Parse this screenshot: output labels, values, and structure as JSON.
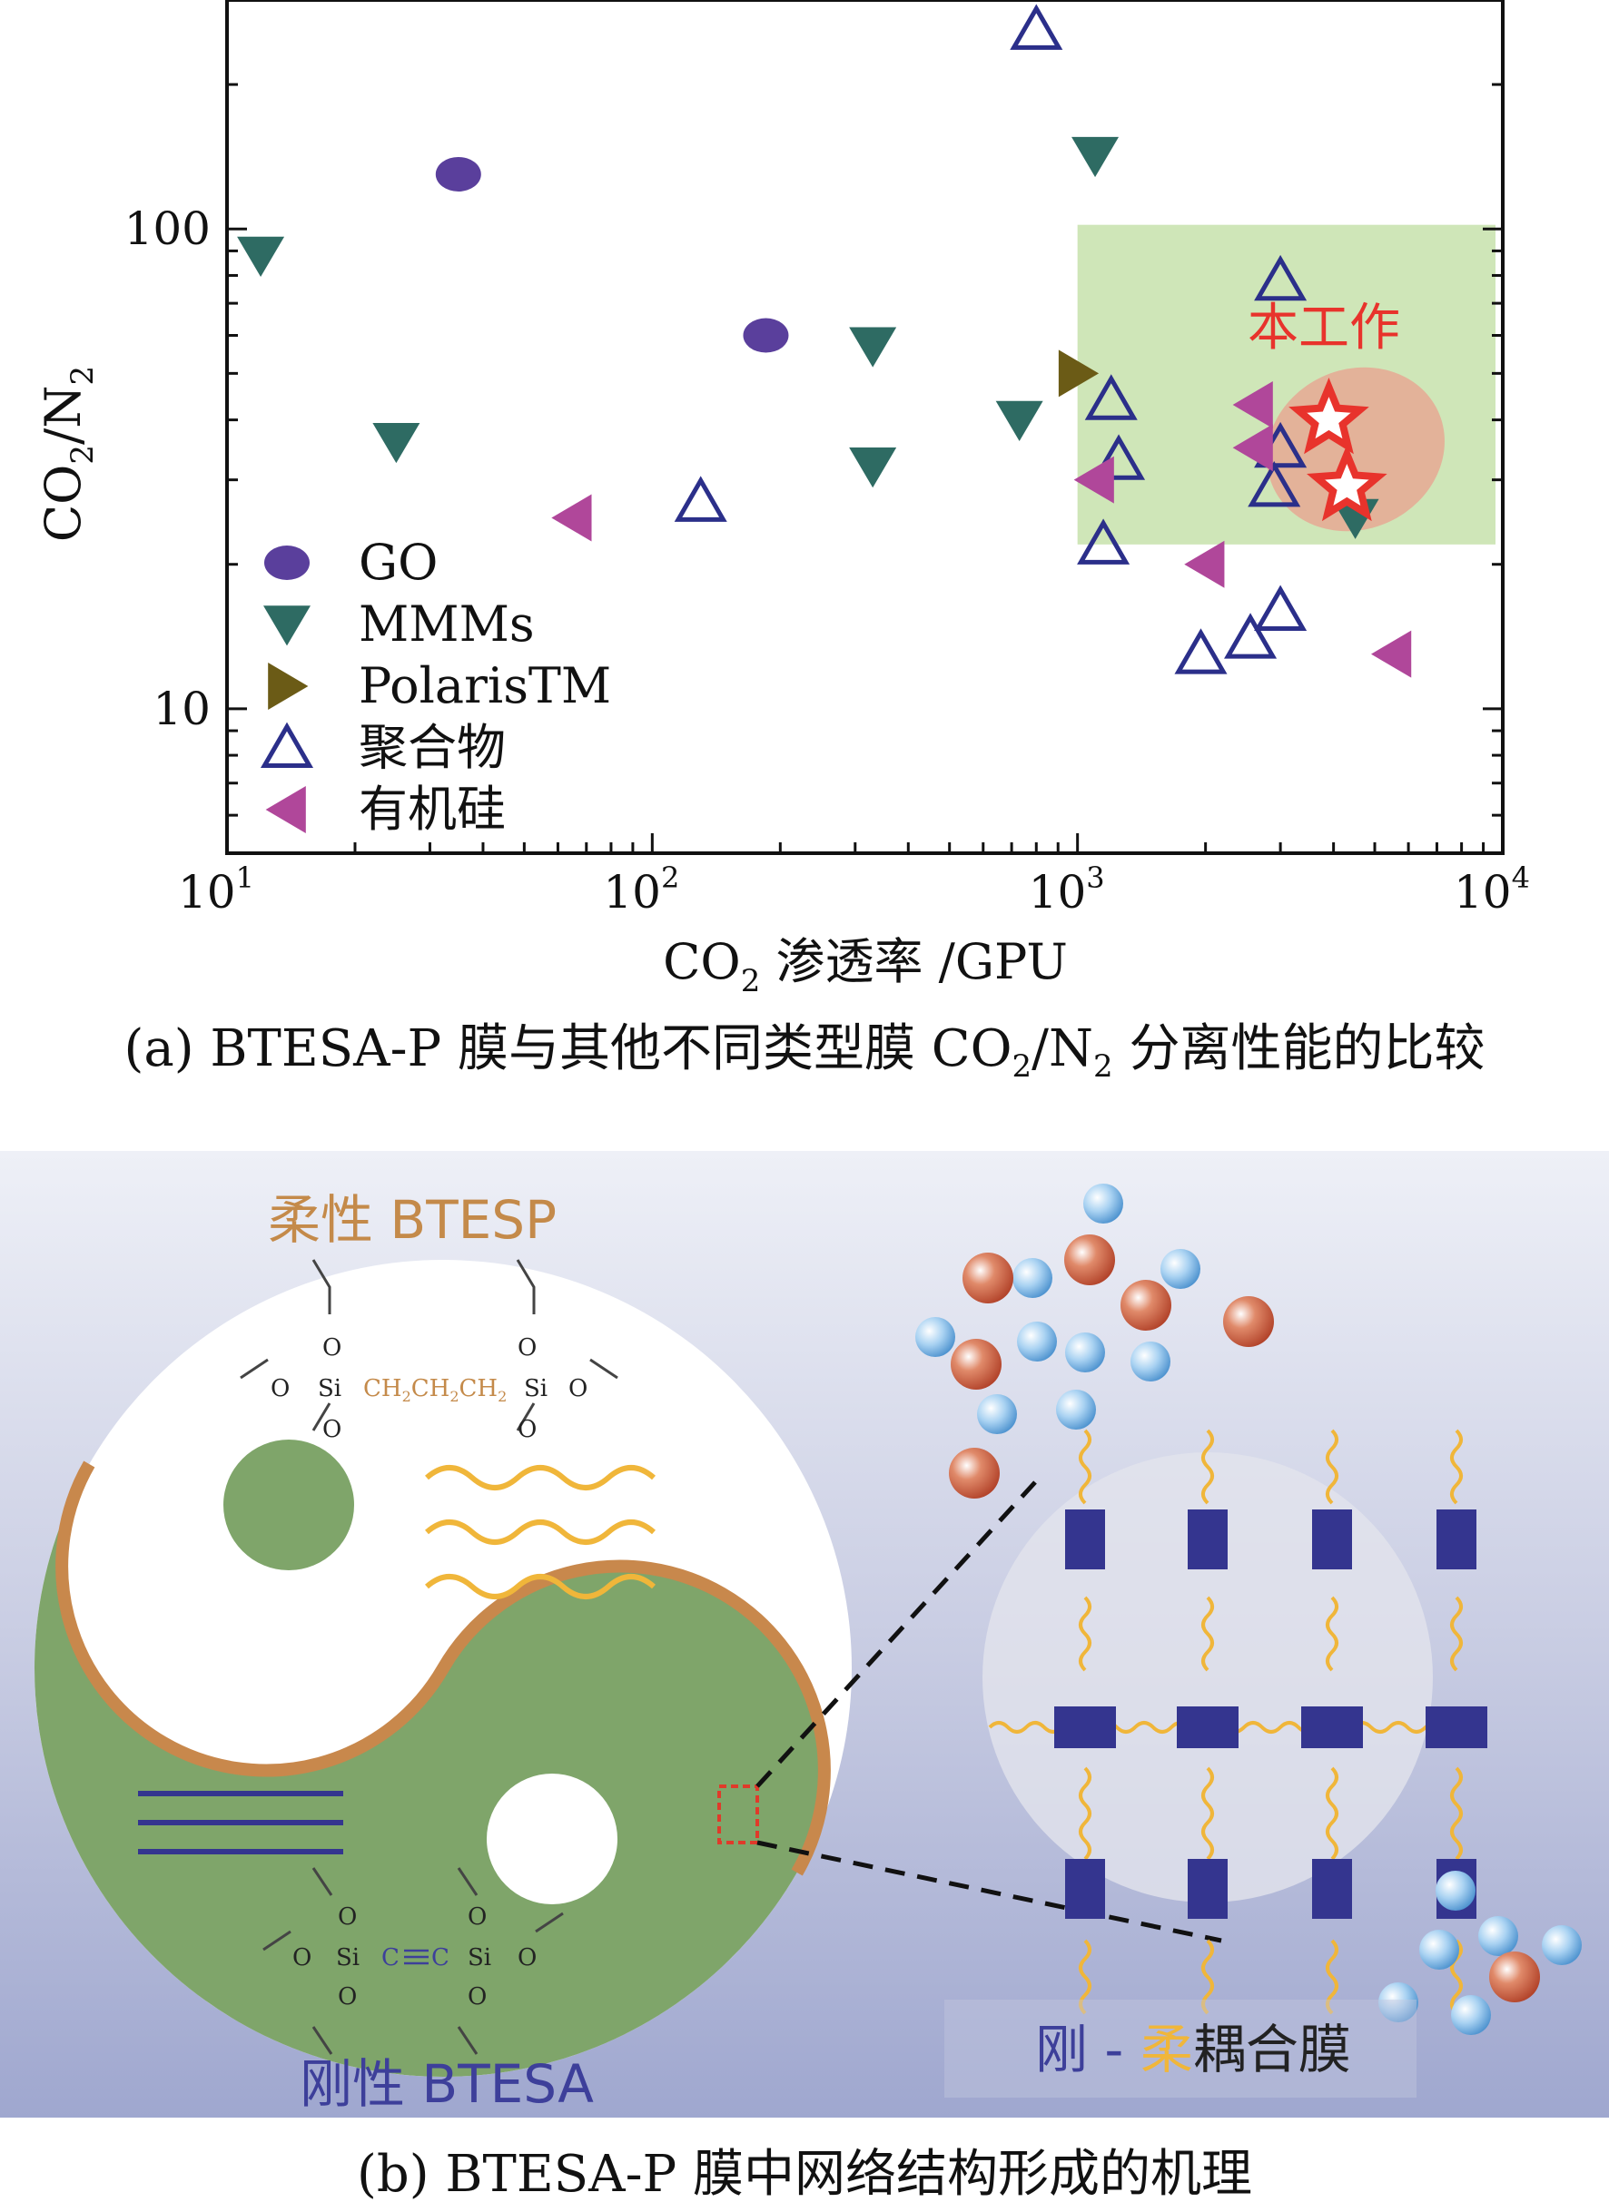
{
  "chart_data": {
    "type": "scatter",
    "x_scale": "log",
    "y_scale": "log",
    "xlim": [
      10,
      10000
    ],
    "ylim": [
      5,
      300
    ],
    "xlabel_main": "CO",
    "xlabel_sub": "2",
    "xlabel_rest": " 渗透率 /GPU",
    "ylabel_main": "CO",
    "ylabel_sub": "2",
    "ylabel_rest": "/N",
    "ylabel_sub2": "2",
    "x_ticks": [
      {
        "value": 10,
        "base": "10",
        "exp": "1"
      },
      {
        "value": 100,
        "base": "10",
        "exp": "2"
      },
      {
        "value": 1000,
        "base": "10",
        "exp": "3"
      },
      {
        "value": 10000,
        "base": "10",
        "exp": "4"
      }
    ],
    "y_ticks": [
      {
        "value": 10,
        "label": "10"
      },
      {
        "value": 100,
        "label": "100"
      }
    ],
    "legend_position": "bottom-left",
    "highlight_region": {
      "x": [
        1000,
        10000
      ],
      "y": [
        22,
        102
      ],
      "color": "#cfe6b8"
    },
    "highlight_label": "本工作",
    "series": [
      {
        "name": "GO",
        "marker": "circle",
        "color": "#5a3f9c",
        "points": [
          [
            35,
            130
          ],
          [
            185,
            60
          ]
        ]
      },
      {
        "name": "MMMs",
        "marker": "triangle-down",
        "color": "#2e6b63",
        "points": [
          [
            12,
            88
          ],
          [
            25,
            36
          ],
          [
            330,
            57
          ],
          [
            330,
            32
          ],
          [
            730,
            40
          ],
          [
            1100,
            142
          ],
          [
            4500,
            25
          ]
        ]
      },
      {
        "name": "PolarisTM",
        "marker": "triangle-right",
        "color": "#6b5b16",
        "points": [
          [
            1000,
            50
          ]
        ]
      },
      {
        "name": "聚合物",
        "marker": "triangle-up-open",
        "color": "#2b2f8a",
        "points": [
          [
            800,
            260
          ],
          [
            3000,
            78
          ],
          [
            1200,
            44
          ],
          [
            1250,
            33
          ],
          [
            1150,
            22
          ],
          [
            3000,
            35
          ],
          [
            2900,
            29
          ],
          [
            130,
            27
          ],
          [
            3000,
            16
          ],
          [
            2550,
            14
          ],
          [
            1950,
            13
          ]
        ]
      },
      {
        "name": "有机硅",
        "marker": "triangle-left",
        "color": "#b0479a",
        "points": [
          [
            65,
            25
          ],
          [
            1100,
            30
          ],
          [
            2000,
            20
          ],
          [
            2600,
            43
          ],
          [
            2600,
            35
          ],
          [
            5500,
            13
          ]
        ]
      },
      {
        "name": "本工作",
        "marker": "star",
        "color": "#e8332c",
        "points": [
          [
            3900,
            40
          ],
          [
            4300,
            29
          ]
        ]
      }
    ]
  },
  "captions": {
    "a_prefix": "(a) BTESA-P 膜与其他不同类型膜 CO",
    "a_sub": "2",
    "a_mid": "/N",
    "a_sub2": "2",
    "a_suffix": " 分离性能的比较",
    "b": "(b) BTESA-P 膜中网络结构形成的机理"
  },
  "figure_b": {
    "flexible_label": "柔性 BTESP",
    "rigid_label": "刚性 BTESA",
    "membrane_label_rigid": "刚 - ",
    "membrane_label_soft": "柔",
    "membrane_label_rest": "耦合膜",
    "top_molecule": {
      "o": "O",
      "si": "Si",
      "chain_parts": [
        "CH",
        "2",
        "CH",
        "2",
        "CH",
        "2"
      ]
    },
    "bottom_molecule": {
      "o": "O",
      "si": "Si",
      "c": "C"
    },
    "colors": {
      "green": "#7fa56a",
      "orange_edge": "#c8884c",
      "flex_text": "#c48a4a",
      "rigid_text": "#3d3f9a",
      "block": "#34358f",
      "wave": "#f0b63a",
      "red_molecule": "#c9553a",
      "blue_molecule": "#5fa6dd"
    }
  }
}
